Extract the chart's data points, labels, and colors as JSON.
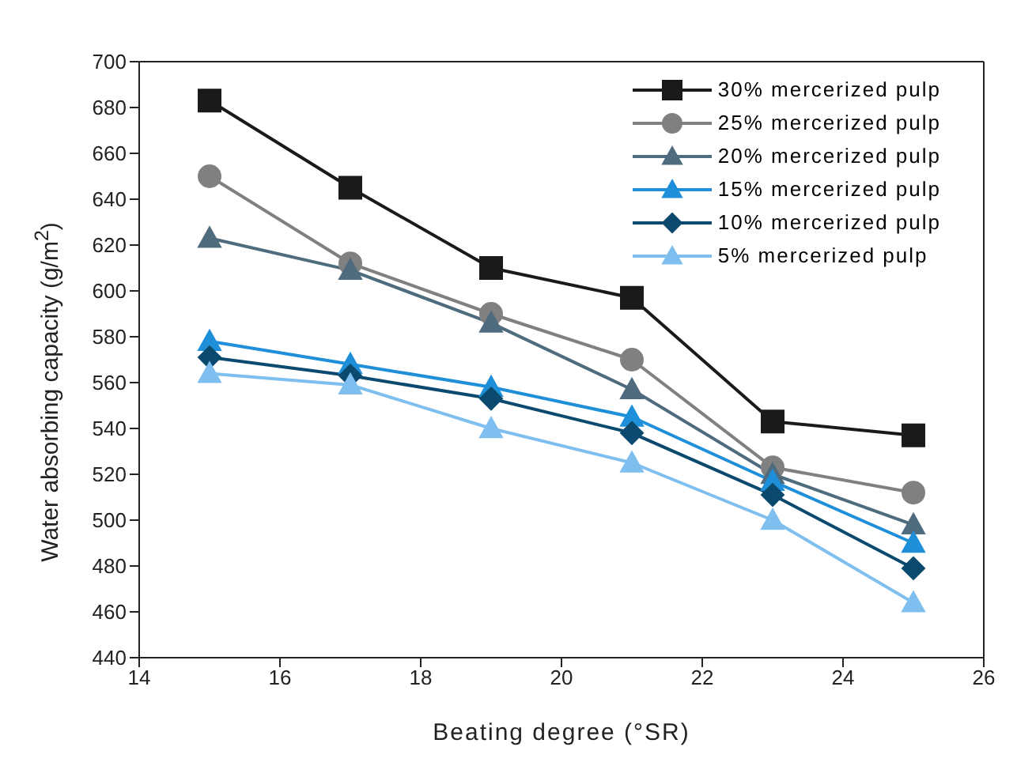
{
  "chart_data": {
    "type": "line",
    "xlabel": "Beating degree (°SR)",
    "ylabel": "Water absorbing capacity (g/m$^{2}$)",
    "x": [
      15,
      17,
      19,
      21,
      23,
      25
    ],
    "xlim": [
      14,
      26
    ],
    "xticks": [
      14,
      16,
      18,
      20,
      22,
      24,
      26
    ],
    "ylim": [
      440,
      700
    ],
    "yticks": [
      440,
      460,
      480,
      500,
      520,
      540,
      560,
      580,
      600,
      620,
      640,
      660,
      680,
      700
    ],
    "grid": false,
    "legend": "top right",
    "line_style": "solid",
    "series": [
      {
        "name": "30% mercerized pulp",
        "color": "#1a1a1a",
        "marker": "square",
        "values": [
          683,
          645,
          610,
          597,
          543,
          537
        ]
      },
      {
        "name": "25% mercerized pulp",
        "color": "#808080",
        "marker": "circle",
        "values": [
          650,
          612,
          590,
          570,
          523,
          512
        ]
      },
      {
        "name": "20% mercerized pulp",
        "color": "#4f6b7e",
        "marker": "triangle",
        "values": [
          623,
          609,
          586,
          557,
          520,
          498
        ]
      },
      {
        "name": "15% mercerized pulp",
        "color": "#1e8fd8",
        "marker": "triangle",
        "values": [
          578,
          568,
          558,
          545,
          517,
          490
        ]
      },
      {
        "name": "10% mercerized pulp",
        "color": "#0b4a6e",
        "marker": "diamond",
        "values": [
          571,
          563,
          553,
          538,
          511,
          479
        ]
      },
      {
        "name": "5% mercerized pulp",
        "color": "#7fbfef",
        "marker": "triangle",
        "values": [
          564,
          559,
          540,
          525,
          500,
          464
        ]
      }
    ]
  }
}
